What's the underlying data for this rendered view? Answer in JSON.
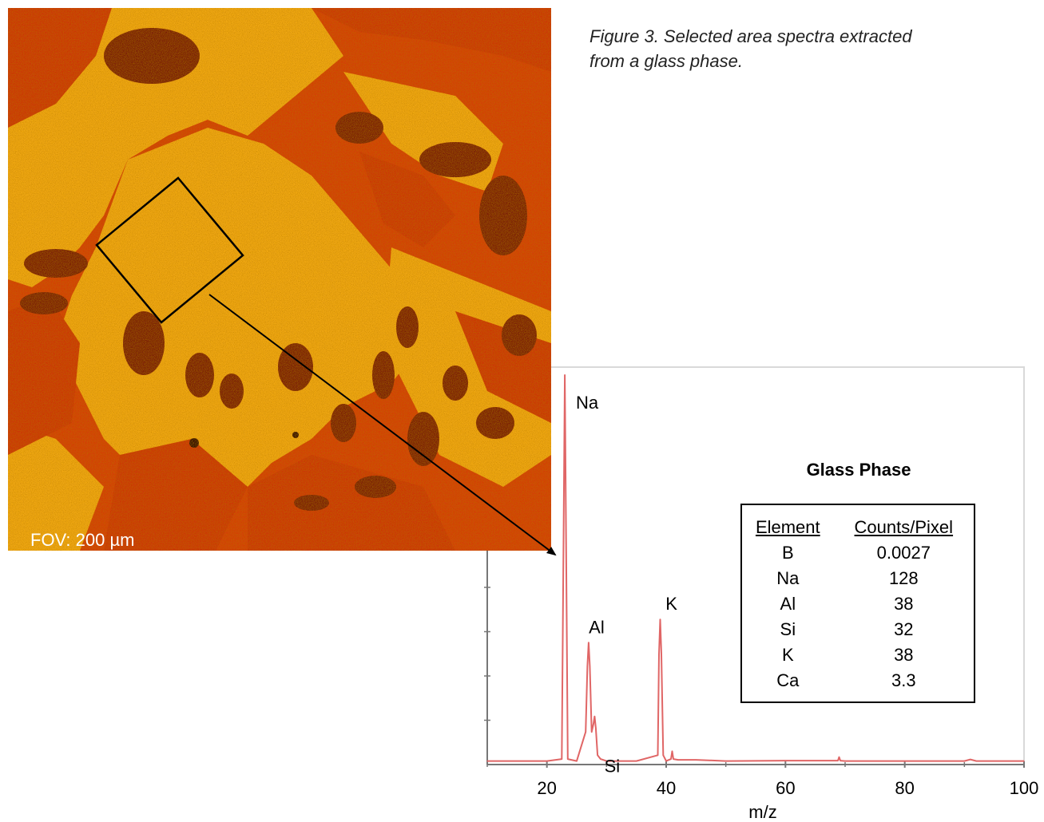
{
  "caption": "Figure 3. Selected area spectra extracted from a glass phase.",
  "micrograph": {
    "fov_label": "FOV: 200 µm"
  },
  "table": {
    "title": "Glass Phase",
    "headers": [
      "Element",
      "Counts/Pixel"
    ],
    "rows": [
      [
        "B",
        "0.0027"
      ],
      [
        "Na",
        "128"
      ],
      [
        "Al",
        "38"
      ],
      [
        "Si",
        "32"
      ],
      [
        "K",
        "38"
      ],
      [
        "Ca",
        "3.3"
      ]
    ]
  },
  "chart_data": {
    "type": "line",
    "title": "",
    "xlabel": "m/z",
    "ylabel": "",
    "xlim": [
      10,
      100
    ],
    "ylim": [
      0,
      100
    ],
    "x_ticks": [
      20,
      40,
      60,
      80,
      100
    ],
    "grid": false,
    "series": [
      {
        "color": "#e06666",
        "x": [
          10,
          20,
          22.5,
          22.8,
          23,
          23.2,
          23.5,
          25,
          26.5,
          26.8,
          27,
          27.2,
          27.5,
          27.8,
          28,
          28.2,
          28.5,
          29,
          30,
          35,
          38.6,
          38.8,
          39,
          39.2,
          39.5,
          40,
          40.8,
          41,
          41.2,
          42,
          45,
          50,
          60,
          68.8,
          69,
          69.2,
          70,
          80,
          90,
          91,
          92,
          100
        ],
        "y": [
          0.5,
          0.5,
          1,
          60,
          100,
          60,
          1,
          0.5,
          8,
          25,
          31,
          25,
          8,
          10,
          12,
          9,
          2,
          1,
          0.5,
          0.5,
          2,
          28,
          37,
          28,
          2,
          0.5,
          1,
          3,
          1,
          0.8,
          0.8,
          0.5,
          0.6,
          0.6,
          1.5,
          0.6,
          0.5,
          0.5,
          0.5,
          0.9,
          0.5,
          0.5
        ]
      }
    ],
    "annotations": [
      {
        "text": "Na",
        "x": 23,
        "y": 100
      },
      {
        "text": "Al",
        "x": 27,
        "y": 31
      },
      {
        "text": "Si",
        "x": 28,
        "y": 12
      },
      {
        "text": "K",
        "x": 39,
        "y": 37
      }
    ]
  }
}
